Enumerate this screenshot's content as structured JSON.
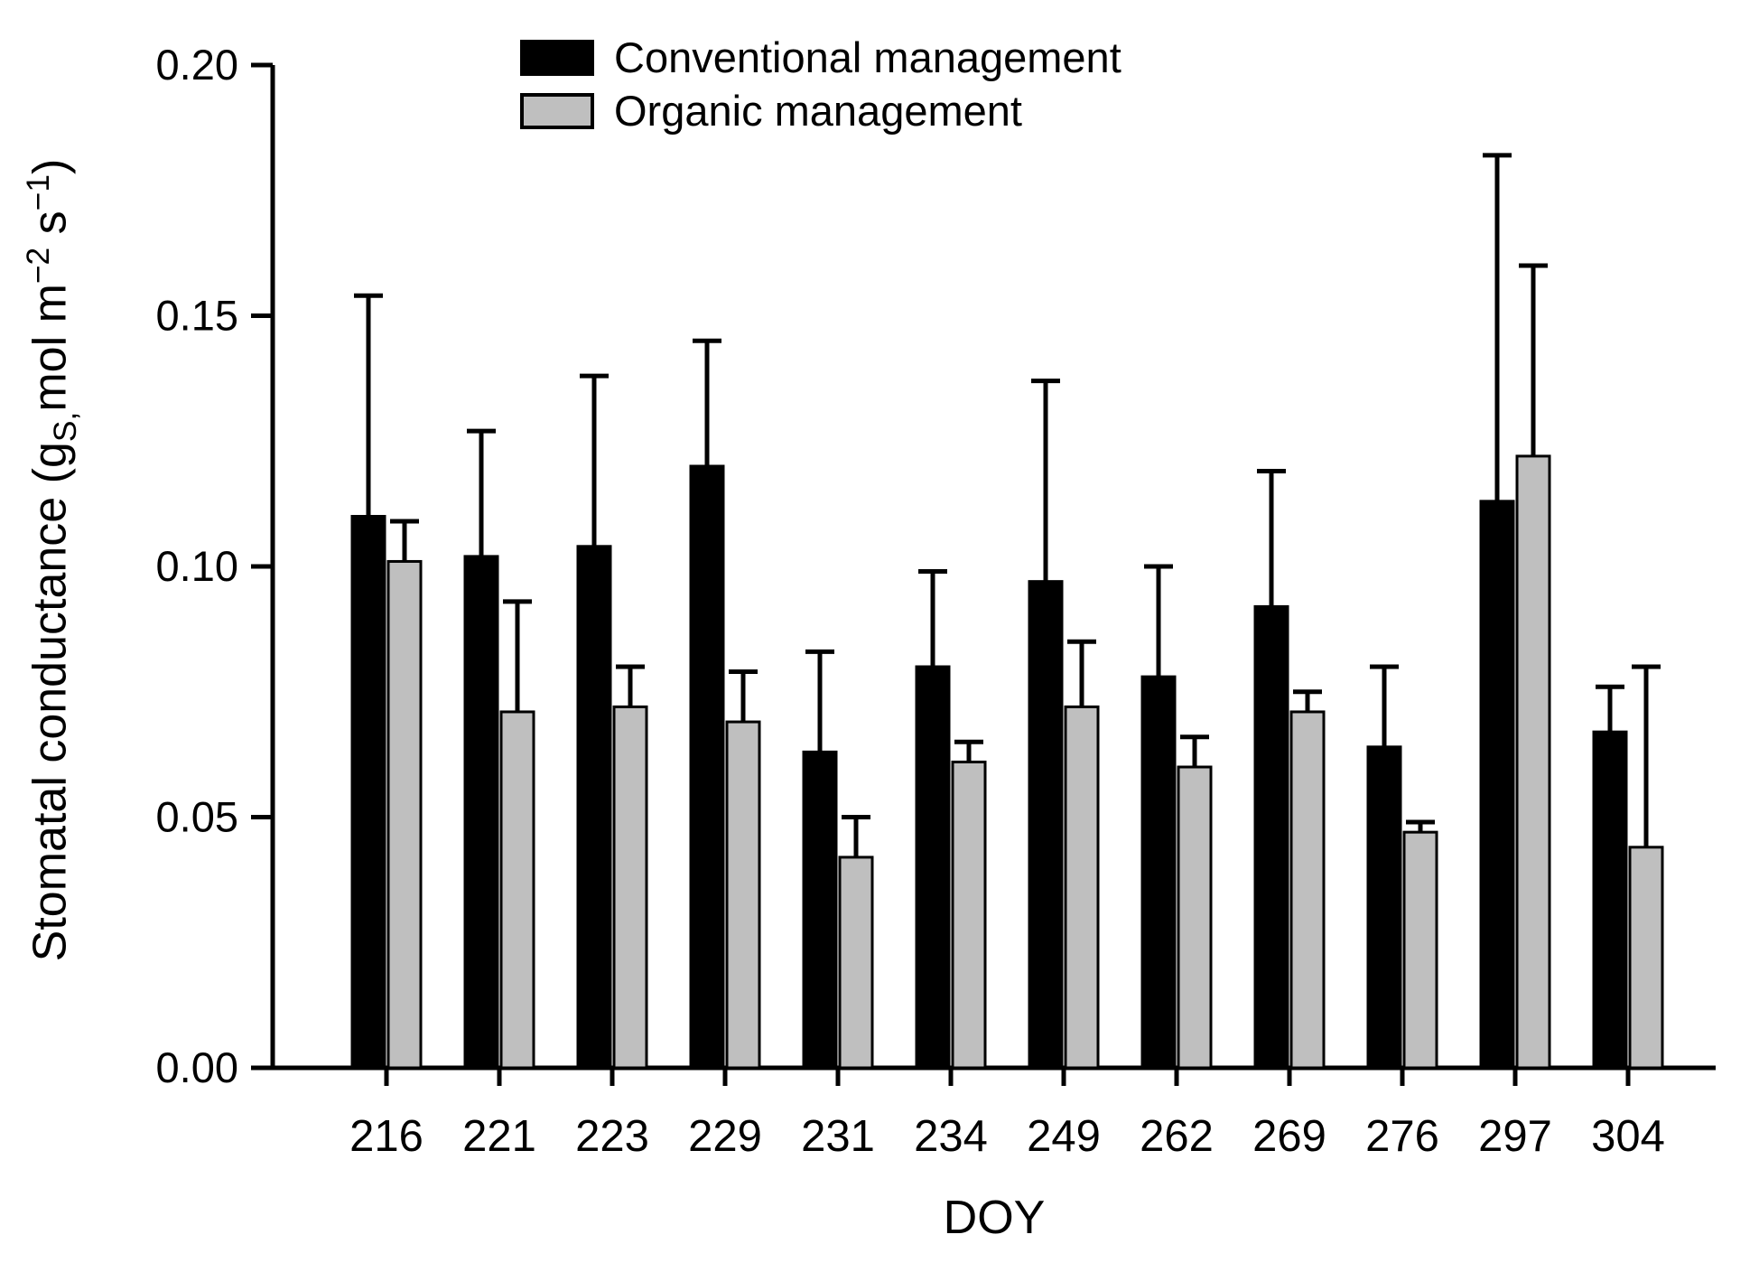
{
  "chart_data": {
    "type": "bar",
    "title": "",
    "categories": [
      "216",
      "221",
      "223",
      "229",
      "231",
      "234",
      "249",
      "262",
      "269",
      "276",
      "297",
      "304"
    ],
    "series": [
      {
        "name": "Conventional management",
        "key": "conventional",
        "color": "#000000",
        "values": [
          0.11,
          0.102,
          0.104,
          0.12,
          0.063,
          0.08,
          0.097,
          0.078,
          0.092,
          0.064,
          0.113,
          0.067
        ],
        "errors": [
          0.044,
          0.025,
          0.034,
          0.025,
          0.02,
          0.019,
          0.04,
          0.022,
          0.027,
          0.016,
          0.069,
          0.009
        ]
      },
      {
        "name": "Organic management",
        "key": "organic",
        "color": "#bfbfbf",
        "values": [
          0.101,
          0.071,
          0.072,
          0.069,
          0.042,
          0.061,
          0.072,
          0.06,
          0.071,
          0.047,
          0.122,
          0.044
        ],
        "errors": [
          0.008,
          0.022,
          0.008,
          0.01,
          0.008,
          0.004,
          0.013,
          0.006,
          0.004,
          0.002,
          0.038,
          0.036
        ]
      }
    ],
    "xlabel": "DOY",
    "ylabel": "Stomatal conductance (gS,mol m−2 s−1)",
    "ylabel_parts": {
      "p1": "Stomatal conductance (g",
      "sub": "S,",
      "p2": "mol m",
      "sup1": "−2",
      "p3": " s",
      "sup2": "−1",
      "p4": ")"
    },
    "ylim": [
      0,
      0.2
    ],
    "yticks": [
      "0.00",
      "0.05",
      "0.10",
      "0.15",
      "0.20"
    ],
    "grid": false,
    "legend_position": "top-inside",
    "error_bars": "upper-only"
  }
}
